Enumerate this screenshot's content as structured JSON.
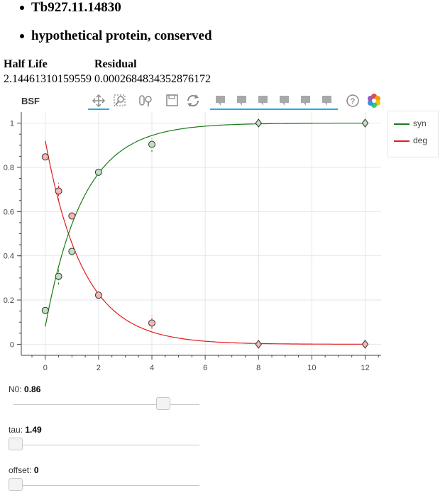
{
  "header": {
    "gene_id": "Tb927.11.14830",
    "description": "hypothetical protein, conserved"
  },
  "stats": {
    "half_life_label": "Half Life",
    "residual_label": "Residual",
    "half_life_value": "2.14461310159559",
    "residual_value": "0.0002684834352876172"
  },
  "toolbar": {
    "title": "BSF",
    "tools": [
      "pan-icon",
      "box-zoom-icon",
      "wheel-zoom-icon",
      "save-icon",
      "reset-icon",
      "hover-icon",
      "hover-icon",
      "hover-icon",
      "hover-icon",
      "hover-icon",
      "hover-icon",
      "help-icon",
      "bokeh-logo-icon"
    ]
  },
  "chart_data": {
    "type": "scatter",
    "xlim": [
      -0.9,
      12.6
    ],
    "ylim": [
      -0.05,
      1.05
    ],
    "xticks": [
      0,
      2,
      4,
      6,
      8,
      10,
      12
    ],
    "yticks": [
      0,
      0.2,
      0.4,
      0.6,
      0.8,
      1
    ],
    "grid": true,
    "legend_position": "top-right",
    "series": [
      {
        "name": "syn",
        "color": "#1a7a1a",
        "fill": "#bfe0bf",
        "points": [
          {
            "x": 0,
            "y": 0.153,
            "marker": "circle"
          },
          {
            "x": 0.5,
            "y": 0.307,
            "marker": "circle",
            "err": [
              0.27,
              0.35
            ]
          },
          {
            "x": 1,
            "y": 0.42,
            "marker": "circle"
          },
          {
            "x": 2,
            "y": 0.778,
            "marker": "circle"
          },
          {
            "x": 4,
            "y": 0.904,
            "marker": "circle",
            "err": [
              0.87,
              0.93
            ]
          },
          {
            "x": 8,
            "y": 1.0,
            "marker": "diamond"
          },
          {
            "x": 12,
            "y": 1.0,
            "marker": "diamond"
          }
        ]
      },
      {
        "name": "deg",
        "color": "#e31a1c",
        "fill": "#f4b6b6",
        "points": [
          {
            "x": 0,
            "y": 0.847,
            "marker": "circle"
          },
          {
            "x": 0.5,
            "y": 0.693,
            "marker": "circle",
            "err": [
              0.65,
              0.73
            ]
          },
          {
            "x": 1,
            "y": 0.58,
            "marker": "circle"
          },
          {
            "x": 2,
            "y": 0.222,
            "marker": "circle"
          },
          {
            "x": 4,
            "y": 0.096,
            "marker": "circle",
            "err": [
              0.07,
              0.13
            ]
          },
          {
            "x": 8,
            "y": 0.0,
            "marker": "diamond"
          },
          {
            "x": 12,
            "y": 0.0,
            "marker": "diamond"
          }
        ]
      }
    ],
    "fit_curves": {
      "deg": {
        "a": 0.92,
        "k": 0.7,
        "c": 0.0
      },
      "syn": {
        "a": 0.92,
        "k": 0.7,
        "c": 1.0
      }
    }
  },
  "sliders": [
    {
      "label": "N0:",
      "value": "0.86",
      "fraction": 0.86
    },
    {
      "label": "tau:",
      "value": "1.49",
      "fraction": 0.0
    },
    {
      "label": "offset:",
      "value": "0",
      "fraction": 0.0
    }
  ]
}
